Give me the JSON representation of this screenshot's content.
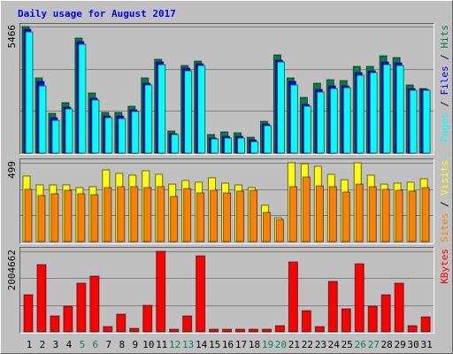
{
  "legend_separator": " / ",
  "chart_data": [
    {
      "type": "bar",
      "title": "Daily usage for August 2017",
      "ylim": [
        0,
        5466
      ],
      "yticks": [
        5466
      ],
      "grid": true,
      "grid_divisions": 3,
      "series": [
        {
          "name": "Hits",
          "color": "#008040",
          "values": [
            5466,
            3249,
            1720,
            2179,
            4969,
            2599,
            1758,
            1758,
            2026,
            3249,
            4052,
            956,
            3784,
            3975,
            803,
            917,
            879,
            688,
            1376,
            4243,
            3249,
            2408,
            3020,
            3173,
            3135,
            3746,
            3746,
            4205,
            4128,
            2943,
            2790
          ]
        },
        {
          "name": "Files",
          "color": "#0000ff",
          "values": [
            5351,
            3096,
            1529,
            1987,
            4816,
            2370,
            1605,
            1605,
            1873,
            3020,
            3937,
            841,
            3669,
            3860,
            650,
            726,
            726,
            573,
            1261,
            4013,
            3096,
            2102,
            2752,
            2905,
            2905,
            3478,
            3555,
            3937,
            3898,
            2790,
            2752
          ]
        },
        {
          "name": "Pages",
          "color": "#00ffff",
          "values": [
            5236,
            2905,
            1414,
            1911,
            4701,
            2293,
            1529,
            1491,
            1796,
            2943,
            3822,
            803,
            3555,
            3784,
            612,
            650,
            650,
            497,
            1185,
            3937,
            2943,
            2026,
            2637,
            2790,
            2828,
            3363,
            3478,
            3822,
            3784,
            2714,
            2714
          ]
        }
      ]
    },
    {
      "type": "bar",
      "ylim": [
        0,
        499
      ],
      "yticks": [
        499
      ],
      "grid": true,
      "grid_divisions": 3,
      "series": [
        {
          "name": "Visits",
          "color": "#ffff00",
          "values": [
            415,
            359,
            359,
            359,
            342,
            348,
            454,
            432,
            421,
            449,
            426,
            364,
            387,
            376,
            404,
            370,
            359,
            342,
            230,
            151,
            499,
            493,
            477,
            426,
            392,
            499,
            421,
            364,
            370,
            376,
            398
          ]
        },
        {
          "name": "Sites",
          "color": "#ff8000",
          "values": [
            331,
            292,
            303,
            325,
            303,
            297,
            342,
            348,
            348,
            342,
            348,
            286,
            336,
            308,
            325,
            308,
            320,
            325,
            185,
            140,
            348,
            409,
            353,
            348,
            314,
            364,
            348,
            331,
            325,
            320,
            342
          ]
        }
      ]
    },
    {
      "type": "bar",
      "ylim": [
        0,
        2004662
      ],
      "yticks": [
        2004662
      ],
      "grid": true,
      "grid_divisions": 3,
      "categories": [
        "1",
        "2",
        "3",
        "4",
        "5",
        "6",
        "7",
        "8",
        "9",
        "10",
        "11",
        "12",
        "13",
        "14",
        "15",
        "16",
        "17",
        "18",
        "19",
        "20",
        "21",
        "22",
        "23",
        "24",
        "25",
        "26",
        "27",
        "28",
        "29",
        "30",
        "31"
      ],
      "category_colors": [
        "#000000",
        "#000000",
        "#000000",
        "#000000",
        "#00805c",
        "#00805c",
        "#000000",
        "#000000",
        "#000000",
        "#000000",
        "#000000",
        "#00805c",
        "#00805c",
        "#000000",
        "#000000",
        "#000000",
        "#000000",
        "#000000",
        "#00805c",
        "#00805c",
        "#000000",
        "#000000",
        "#000000",
        "#000000",
        "#000000",
        "#00805c",
        "#00805c",
        "#000000",
        "#000000",
        "#000000",
        "#000000"
      ],
      "series": [
        {
          "name": "KBytes",
          "color": "#ff0000",
          "values": [
            925000,
            1674000,
            397000,
            639000,
            1212000,
            1388000,
            132000,
            441000,
            88000,
            661000,
            2004662,
            66000,
            397000,
            1894000,
            66000,
            66000,
            66000,
            66000,
            66000,
            154000,
            1740000,
            529000,
            132000,
            1256000,
            573000,
            1696000,
            639000,
            925000,
            1212000,
            154000,
            374000
          ]
        }
      ]
    }
  ]
}
